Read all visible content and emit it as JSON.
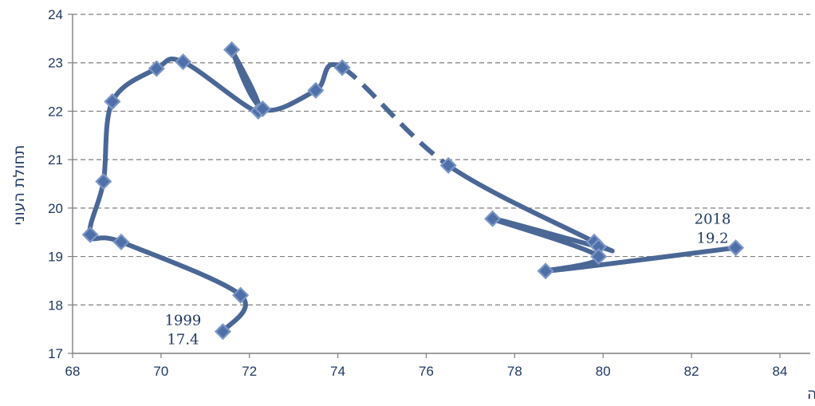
{
  "chart_data": {
    "type": "scatter",
    "xlabel": "שיעור תעסוקה",
    "ylabel": "תחולת העוני",
    "xlim": [
      68,
      84
    ],
    "ylim": [
      17,
      24
    ],
    "x_ticks": [
      "68",
      "70",
      "72",
      "74",
      "76",
      "78",
      "80",
      "82",
      "84"
    ],
    "y_ticks": [
      "17",
      "18",
      "19",
      "20",
      "21",
      "22",
      "23",
      "24"
    ],
    "grid": "horizontal dashed",
    "line_color": "#4a6796",
    "marker_fill": "#4f6fa8",
    "marker_edge": "#7b96c7",
    "text_color": "#1f3864",
    "points": [
      {
        "x": 71.4,
        "y": 17.45
      },
      {
        "x": 71.8,
        "y": 18.2
      },
      {
        "x": 69.1,
        "y": 19.3
      },
      {
        "x": 68.4,
        "y": 19.45
      },
      {
        "x": 68.7,
        "y": 20.55
      },
      {
        "x": 68.9,
        "y": 22.2
      },
      {
        "x": 69.9,
        "y": 22.88
      },
      {
        "x": 70.5,
        "y": 23.02
      },
      {
        "x": 72.2,
        "y": 22.0
      },
      {
        "x": 71.6,
        "y": 23.27
      },
      {
        "x": 72.3,
        "y": 22.05
      },
      {
        "x": 73.5,
        "y": 22.43
      },
      {
        "x": 74.1,
        "y": 22.9
      },
      {
        "x": 76.5,
        "y": 20.88
      },
      {
        "x": 79.8,
        "y": 19.3
      },
      {
        "x": 79.9,
        "y": 19.2
      },
      {
        "x": 77.5,
        "y": 19.78
      },
      {
        "x": 79.9,
        "y": 19.0
      },
      {
        "x": 78.7,
        "y": 18.7
      },
      {
        "x": 83.0,
        "y": 19.18
      }
    ],
    "dashed_segment": [
      12,
      13
    ],
    "annotations": [
      {
        "point": 0,
        "year": "1999",
        "value": "17.4"
      },
      {
        "point": 19,
        "year": "2018",
        "value": "19.2"
      }
    ]
  }
}
